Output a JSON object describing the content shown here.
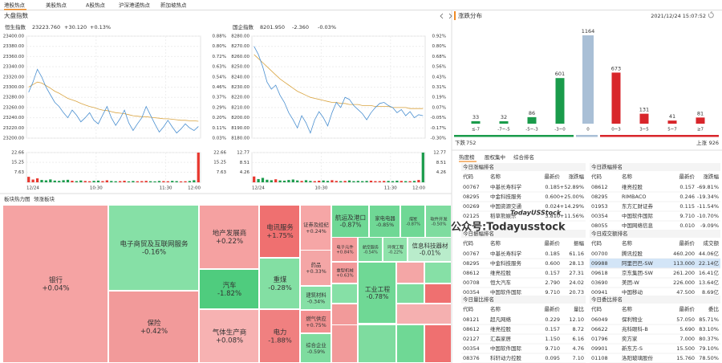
{
  "tabs": [
    "港股热点",
    "美股热点",
    "A股热点",
    "沪深港通热点",
    "新加坡热点"
  ],
  "market": {
    "title": "大盘指数",
    "indices": [
      {
        "name": "恒生指数",
        "price": "23223.760",
        "change": "+30.120",
        "pct": "+0.13%",
        "color": "#e8382f",
        "yticks": [
          {
            "value": 23400,
            "label": "23400.00"
          },
          {
            "value": 23380,
            "label": "23380.00"
          },
          {
            "value": 23360,
            "label": "23360.00"
          },
          {
            "value": 23340,
            "label": "23340.00"
          },
          {
            "value": 23320,
            "label": "23320.00"
          },
          {
            "value": 23300,
            "label": "23300.00"
          },
          {
            "value": 23280,
            "label": "23280.00"
          },
          {
            "value": 23260,
            "label": "23260.00"
          },
          {
            "value": 23240,
            "label": "23240.00"
          },
          {
            "value": 23220,
            "label": "23220.00"
          },
          {
            "value": 23200,
            "label": "23200.00"
          }
        ],
        "pct_ticks": [
          "0.88%",
          "0.80%",
          "0.72%",
          "0.63%",
          "0.54%",
          "0.46%",
          "0.37%",
          "0.29%",
          "0.20%",
          "0.11%",
          "0.03%"
        ],
        "vol_ticks": [
          22.66,
          15.25,
          7.63
        ],
        "xticks": [
          "12/24",
          "10:30",
          "11:30",
          "12:00"
        ],
        "price_series": [
          23290,
          23310,
          23335,
          23320,
          23300,
          23285,
          23270,
          23262,
          23250,
          23240,
          23255,
          23245,
          23232,
          23240,
          23250,
          23235,
          23228,
          23245,
          23262,
          23240,
          23225,
          23238,
          23255,
          23230,
          23215,
          23228,
          23240,
          23262,
          23245,
          23228,
          23212,
          23222,
          23235,
          23222,
          23210,
          23218,
          23228,
          23220,
          23215,
          23223
        ],
        "avg_series": [
          23300,
          23305,
          23310,
          23308,
          23303,
          23298,
          23292,
          23288,
          23283,
          23278,
          23275,
          23272,
          23268,
          23265,
          23262,
          23260,
          23257,
          23255,
          23254,
          23252,
          23250,
          23249,
          23248,
          23246,
          23244,
          23243,
          23242,
          23242,
          23241,
          23240,
          23239,
          23238,
          23238,
          23237,
          23236,
          23235,
          23235,
          23234,
          23234,
          23233
        ],
        "volume": [
          4.2,
          2.1,
          3.0,
          1.8,
          1.5,
          2.2,
          1.3,
          1.1,
          1.6,
          1.9,
          1.2,
          0.9,
          1.4,
          1.0,
          0.8,
          1.1,
          1.3,
          0.9,
          1.5,
          1.0,
          0.8,
          0.9,
          1.2,
          0.7,
          1.0,
          0.8,
          0.9,
          1.1,
          0.8,
          0.7,
          1.0,
          0.9,
          0.8,
          1.1,
          0.9,
          0.7,
          0.8,
          1.0,
          1.6,
          22.66
        ]
      },
      {
        "name": "国企指数",
        "price": "8201.950",
        "change": "-2.360",
        "pct": "-0.03%",
        "color": "#1a9b4b",
        "yticks": [
          {
            "value": 8280,
            "label": "8280.00"
          },
          {
            "value": 8270,
            "label": "8270.00"
          },
          {
            "value": 8260,
            "label": "8260.00"
          },
          {
            "value": 8250,
            "label": "8250.00"
          },
          {
            "value": 8240,
            "label": "8240.00"
          },
          {
            "value": 8230,
            "label": "8230.00"
          },
          {
            "value": 8220,
            "label": "8220.00"
          },
          {
            "value": 8210,
            "label": "8210.00"
          },
          {
            "value": 8200,
            "label": "8200.00"
          },
          {
            "value": 8190,
            "label": "8190.00"
          },
          {
            "value": 8180,
            "label": "8180.00"
          }
        ],
        "pct_ticks": [
          "0.92%",
          "0.80%",
          "0.68%",
          "0.56%",
          "0.43%",
          "0.31%",
          "0.19%",
          "0.07%",
          "-0.05%",
          "-0.17%",
          "-0.30%"
        ],
        "vol_ticks": [
          12.77,
          8.51,
          4.26
        ],
        "xticks": [
          "12/24",
          "10:30",
          "11:30",
          "12:00"
        ],
        "price_series": [
          8270,
          8262,
          8250,
          8235,
          8228,
          8232,
          8222,
          8215,
          8205,
          8198,
          8190,
          8202,
          8195,
          8185,
          8198,
          8206,
          8200,
          8192,
          8205,
          8215,
          8210,
          8220,
          8218,
          8212,
          8208,
          8204,
          8198,
          8205,
          8210,
          8214,
          8215,
          8212,
          8210,
          8205,
          8208,
          8202,
          8206,
          8200,
          8203,
          8202
        ],
        "avg_series": [
          8262,
          8258,
          8254,
          8250,
          8246,
          8242,
          8238,
          8235,
          8232,
          8229,
          8226,
          8224,
          8222,
          8220,
          8219,
          8218,
          8217,
          8216,
          8215,
          8215,
          8214,
          8214,
          8213,
          8213,
          8213,
          8212,
          8212,
          8212,
          8211,
          8211,
          8211,
          8211,
          8210,
          8210,
          8210,
          8210,
          8209,
          8209,
          8209,
          8209
        ],
        "volume": [
          2.5,
          1.4,
          1.9,
          1.1,
          0.9,
          1.3,
          0.8,
          0.7,
          1.0,
          1.2,
          0.8,
          0.6,
          0.9,
          0.6,
          0.5,
          0.7,
          0.8,
          0.6,
          0.9,
          0.6,
          0.5,
          0.6,
          0.8,
          0.5,
          0.6,
          0.5,
          0.6,
          0.7,
          0.5,
          0.5,
          0.6,
          0.6,
          0.5,
          0.7,
          0.6,
          0.5,
          0.5,
          0.6,
          1.0,
          12.77
        ]
      }
    ]
  },
  "distribution": {
    "title": "涨跌分布",
    "time": "2021/12/24 15:07:52",
    "categories": [
      "≤-7",
      "-7~-5",
      "-5~-3",
      "-3~0",
      "0",
      "0~3",
      "3~5",
      "5~7",
      "≥7"
    ],
    "values": [
      33,
      32,
      86,
      601,
      1164,
      673,
      131,
      41,
      81
    ],
    "colors": [
      "#1a9b4b",
      "#1a9b4b",
      "#1a9b4b",
      "#1a9b4b",
      "#a9bfd6",
      "#d8262b",
      "#d8262b",
      "#d8262b",
      "#d8262b"
    ],
    "down_label": "下跌",
    "down": 752,
    "up_label": "上涨",
    "up": 926
  },
  "rankings": {
    "tabs": [
      "热度榜",
      "股权集中",
      "综合排名"
    ],
    "blocks": [
      {
        "title": "今日涨幅排名",
        "headers": [
          "代码",
          "名称",
          "最新价",
          "涨跌幅"
        ],
        "rows": [
          {
            "code": "00767",
            "name": "中基长寿科学",
            "price": "0.185",
            "change": "+52.89%",
            "color": "#e8382f"
          },
          {
            "code": "08295",
            "name": "中金科技服务",
            "price": "0.600",
            "change": "+25.00%",
            "color": "#e8382f"
          },
          {
            "code": "00269",
            "name": "中国资源交通",
            "price": "0.024",
            "change": "+14.29%",
            "color": "#e8382f"
          },
          {
            "code": "02125",
            "name": "稻草熊娱乐",
            "price": "3.810",
            "change": "+11.56%",
            "color": "#e8382f"
          }
        ]
      },
      {
        "title": "今日跌幅排名",
        "headers": [
          "代码",
          "名称",
          "最新价",
          "涨跌幅"
        ],
        "rows": [
          {
            "code": "08612",
            "name": "维亮控股",
            "price": "0.157",
            "change": "-69.81%",
            "color": "#1a9b4b"
          },
          {
            "code": "08295",
            "name": "RIMBACO",
            "price": "0.246",
            "change": "-19.34%",
            "color": "#1a9b4b"
          },
          {
            "code": "01953",
            "name": "东方汇财证券",
            "price": "0.115",
            "change": "-11.54%",
            "color": "#1a9b4b"
          },
          {
            "code": "00354",
            "name": "中国软件国际",
            "price": "9.710",
            "change": "-10.70%",
            "color": "#1a9b4b"
          },
          {
            "code": "08055",
            "name": "中国网络信息",
            "price": "0.010",
            "change": "-9.09%",
            "color": "#1a9b4b"
          }
        ]
      },
      {
        "title": "今日振幅排名",
        "headers": [
          "代码",
          "名称",
          "最新价",
          "振幅"
        ],
        "rows": [
          {
            "code": "00767",
            "name": "中基长寿科学",
            "price": "0.185",
            "change": "61.16",
            "color": "#e8382f"
          },
          {
            "code": "08295",
            "name": "中金科技服务",
            "price": "0.600",
            "change": "28.13",
            "color": "#e8382f"
          },
          {
            "code": "08612",
            "name": "维亮控股",
            "price": "0.157",
            "change": "27.31",
            "color": "#1a9b4b"
          },
          {
            "code": "00708",
            "name": "恒大汽车",
            "price": "2.790",
            "change": "24.02",
            "color": "#e8382f"
          },
          {
            "code": "00354",
            "name": "中国软件国际",
            "price": "9.710",
            "change": "20.73",
            "color": "#1a9b4b"
          }
        ]
      },
      {
        "title": "今日成交额排名",
        "headers": [
          "代码",
          "名称",
          "最新价",
          "成交额"
        ],
        "rows": [
          {
            "code": "00700",
            "name": "腾讯控股",
            "price": "460.200",
            "change": "44.06亿",
            "color": "#e8382f"
          },
          {
            "code": "09988",
            "name": "阿里巴巴-SW",
            "price": "113.000",
            "change": "22.14亿",
            "color": "#1a9b4b"
          },
          {
            "code": "09618",
            "name": "京东集团-SW",
            "price": "261.200",
            "change": "16.41亿",
            "color": "#1a9b4b"
          },
          {
            "code": "03690",
            "name": "美团-W",
            "price": "226.000",
            "change": "13.64亿",
            "color": "#1a9b4b"
          },
          {
            "code": "00941",
            "name": "中国移动",
            "price": "47.500",
            "change": "8.69亿",
            "color": "#e8382f"
          }
        ]
      },
      {
        "title": "今日量比排名",
        "headers": [
          "代码",
          "名称",
          "最新价",
          "量比"
        ],
        "rows": [
          {
            "code": "08121",
            "name": "超凡网络",
            "price": "0.229",
            "change": "12.10",
            "color": "#e8382f"
          },
          {
            "code": "08612",
            "name": "维亮控股",
            "price": "0.157",
            "change": "8.72",
            "color": "#1a9b4b"
          },
          {
            "code": "02127",
            "name": "汇森家居",
            "price": "1.150",
            "change": "6.16",
            "color": "#e8382f"
          },
          {
            "code": "00354",
            "name": "中国软件国际",
            "price": "9.710",
            "change": "4.76",
            "color": "#1a9b4b"
          },
          {
            "code": "08376",
            "name": "科轩动力控股",
            "price": "0.095",
            "change": "7.10",
            "color": "#e8382f"
          }
        ]
      },
      {
        "title": "今日委比排名",
        "headers": [
          "代码",
          "名称",
          "最新价",
          "委比"
        ],
        "rows": [
          {
            "code": "06049",
            "name": "保利物业",
            "price": "57.050",
            "change": "85.71%",
            "color": "#e8382f"
          },
          {
            "code": "06622",
            "name": "兆科眼科-B",
            "price": "5.690",
            "change": "83.10%",
            "color": "#e8382f"
          },
          {
            "code": "01796",
            "name": "奕方家",
            "price": "7.000",
            "change": "80.37%",
            "color": "#e8382f"
          },
          {
            "code": "09901",
            "name": "新东方-S",
            "price": "15.500",
            "change": "79.10%",
            "color": "#e8382f"
          },
          {
            "code": "01108",
            "name": "洛阳玻璃股份",
            "price": "15.760",
            "change": "78.50%",
            "color": "#e8382f"
          }
        ]
      }
    ]
  },
  "sectors": {
    "tabs": [
      "板块热力图",
      "领涨板块"
    ],
    "cells": [
      {
        "name": "银行",
        "change": "+0.04%",
        "color": "#f5a3a3"
      },
      {
        "name": "电子商贸及互联网服务",
        "change": "-0.16%",
        "color": "#86e0a6"
      },
      {
        "name": "保险",
        "change": "+0.42%",
        "color": "#f29a9a"
      },
      {
        "name": "地产发展商",
        "change": "+0.22%",
        "color": "#f5a1a1"
      },
      {
        "name": "汽车",
        "change": "-1.82%",
        "color": "#4fcc7e"
      },
      {
        "name": "气体生产商",
        "change": "+0.08%",
        "color": "#f7b2b2"
      },
      {
        "name": "电讯服务",
        "change": "+1.75%",
        "color": "#ef7070"
      },
      {
        "name": "重煤",
        "change": "-0.28%",
        "color": "#83dfa3"
      },
      {
        "name": "电力",
        "change": "-1.88%",
        "color": "#f08080"
      },
      {
        "name": "证券及经纪",
        "change": "+0.24%",
        "color": "#f6a6a6"
      },
      {
        "name": "航运及港口",
        "change": "-0.87%",
        "color": "#6fd895"
      },
      {
        "name": "家电电器",
        "change": "-0.85%",
        "color": "#6fd895"
      },
      {
        "name": "煤炭",
        "change": "-0.87%",
        "color": "#6fd895"
      },
      {
        "name": "软件开发",
        "change": "-0.50%",
        "color": "#7edc9f"
      },
      {
        "name": "药品",
        "change": "+0.33%",
        "color": "#f4a6a6"
      },
      {
        "name": "建筑材料",
        "change": "-0.34%",
        "color": "#86e0a6"
      },
      {
        "name": "燃气供应",
        "change": "+0.75%",
        "color": "#f29090"
      },
      {
        "name": "综合企业",
        "change": "-0.59%",
        "color": "#7edc9f"
      },
      {
        "name": "电子元件",
        "change": "+0.84%",
        "color": "#f29a9a"
      },
      {
        "name": "航空服务",
        "change": "-0.54%",
        "color": "#7edc9f"
      },
      {
        "name": "环保工程",
        "change": "-0.22%",
        "color": "#8fe3ab"
      },
      {
        "name": "信息科技器材",
        "change": "-0.01%",
        "color": "#b9eccb"
      },
      {
        "name": "重型机械",
        "change": "+0.63%",
        "color": "#f29a9a"
      },
      {
        "name": "工业工程",
        "change": "-0.78%",
        "color": "#6fd895"
      }
    ]
  },
  "watermark": {
    "small": "TodayUSStock",
    "large": "公众号:Todayusstock"
  }
}
